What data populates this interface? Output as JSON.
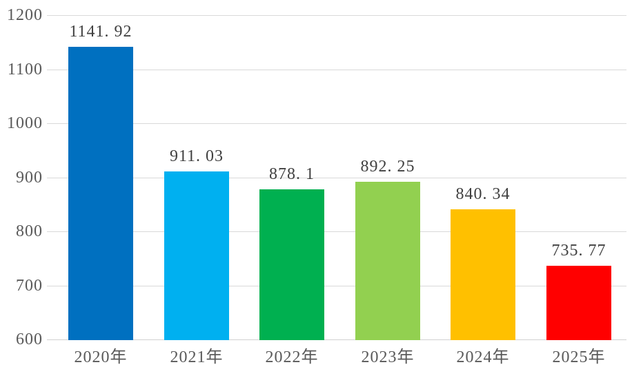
{
  "chart_data": {
    "type": "bar",
    "categories": [
      "2020年",
      "2021年",
      "2022年",
      "2023年",
      "2024年",
      "2025年"
    ],
    "values": [
      1141.92,
      911.03,
      878.1,
      892.25,
      840.34,
      735.77
    ],
    "value_labels": [
      "1141. 92",
      "911. 03",
      "878. 1",
      "892. 25",
      "840. 34",
      "735. 77"
    ],
    "bar_colors": [
      "#0070C0",
      "#00B0F0",
      "#00B050",
      "#92D050",
      "#FFC000",
      "#FF0000"
    ],
    "yticks": [
      1200,
      1100,
      1000,
      900,
      800,
      700,
      600
    ],
    "ylim": [
      600,
      1200
    ],
    "grid": true,
    "legend": false
  },
  "style": {
    "background": "#FFFFFF",
    "gridline_color": "#D9D9D9",
    "axis_line_color": "#D0D0D0",
    "ytick_label_color": "#595959",
    "xtick_label_color": "#595959",
    "value_label_color": "#404040"
  }
}
